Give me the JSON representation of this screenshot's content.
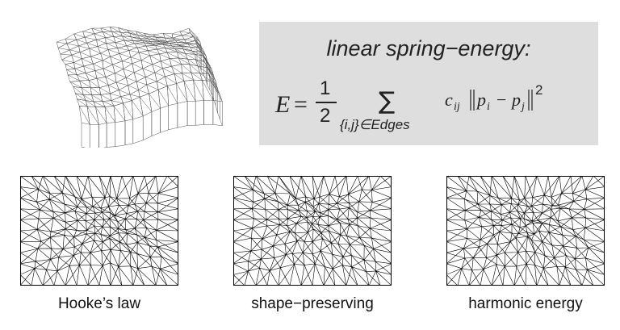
{
  "formula": {
    "title": "linear spring−energy:",
    "lhs": "E",
    "equals": "=",
    "frac_num": "1",
    "frac_den": "2",
    "sum_symbol": "∑",
    "sum_index": "{i,j}∈Edges",
    "coef": "c",
    "coef_sub": "ij",
    "norm_body": "p",
    "sub_i": "i",
    "minus": "−",
    "sub_j": "j",
    "exponent": "2"
  },
  "panels": [
    {
      "caption": "Hooke’s law"
    },
    {
      "caption": "shape−preserving"
    },
    {
      "caption": "harmonic energy"
    }
  ],
  "colors": {
    "mesh_line": "#000000",
    "mesh3d_line": "#555555",
    "formula_bg": "#dedede"
  }
}
